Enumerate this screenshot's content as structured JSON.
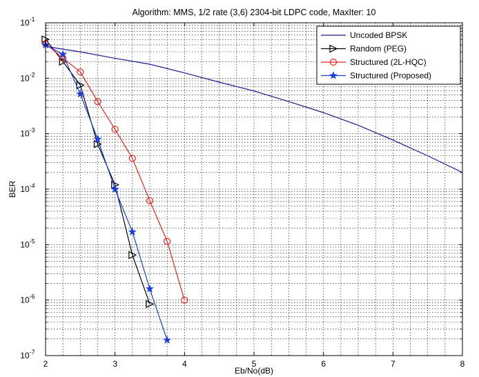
{
  "chart_data": {
    "type": "line",
    "title": "Algorithm: MMS, 1/2 rate (3,6) 2304-bit LDPC code, MaxIter: 10",
    "xlabel": "Eb/No(dB)",
    "ylabel": "BER",
    "xlim": [
      2,
      8
    ],
    "ylim": [
      1e-07,
      0.1
    ],
    "yscale": "log",
    "grid": true,
    "legend_position": "top-right",
    "x_ticks": [
      "2",
      "3",
      "4",
      "5",
      "6",
      "7",
      "8"
    ],
    "y_ticks": [
      {
        "base": "10",
        "exp": "-7"
      },
      {
        "base": "10",
        "exp": "-6"
      },
      {
        "base": "10",
        "exp": "-5"
      },
      {
        "base": "10",
        "exp": "-4"
      },
      {
        "base": "10",
        "exp": "-3"
      },
      {
        "base": "10",
        "exp": "-2"
      },
      {
        "base": "10",
        "exp": "-1"
      }
    ],
    "series": [
      {
        "name": "Uncoded BPSK",
        "color": "#1a1a8c",
        "marker": "none",
        "x": [
          2,
          2.5,
          3,
          3.5,
          4,
          4.5,
          5,
          5.5,
          6,
          6.5,
          7,
          7.5,
          8
        ],
        "y": [
          0.0375,
          0.0299,
          0.0229,
          0.0179,
          0.0125,
          0.0085,
          0.0059,
          0.0038,
          0.0024,
          0.00142,
          0.00077,
          0.0004,
          0.0002
        ]
      },
      {
        "name": "Random (PEG)",
        "color": "#000000",
        "marker": "triangle-right",
        "x": [
          2,
          2.25,
          2.5,
          2.75,
          3,
          3.25,
          3.5
        ],
        "y": [
          0.05,
          0.02,
          0.0075,
          0.00065,
          0.00012,
          6.5e-06,
          8.5e-07
        ]
      },
      {
        "name": "Structured (2L-HQC)",
        "color": "#e8231f",
        "marker": "circle",
        "x": [
          2,
          2.25,
          2.5,
          2.75,
          3,
          3.25,
          3.5,
          3.75,
          4
        ],
        "y": [
          0.042,
          0.023,
          0.013,
          0.0038,
          0.0012,
          0.00036,
          6.2e-05,
          1.15e-05,
          1e-06
        ]
      },
      {
        "name": "Structured (Proposed)",
        "color": "#1a3fe0",
        "marker": "star",
        "x": [
          2,
          2.25,
          2.5,
          2.75,
          3,
          3.25,
          3.5,
          3.75
        ],
        "y": [
          0.04,
          0.027,
          0.0052,
          0.0008,
          0.0001,
          1.7e-05,
          1.6e-06,
          1.9e-07
        ]
      }
    ]
  }
}
